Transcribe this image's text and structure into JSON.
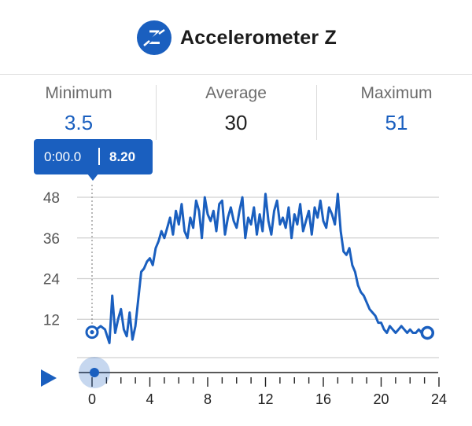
{
  "header": {
    "title": "Accelerometer Z",
    "icon": "accelerometer-z-icon",
    "icon_glyph": "Z"
  },
  "stats": {
    "minimum_label": "Minimum",
    "minimum_value": "3.5",
    "average_label": "Average",
    "average_value": "30",
    "maximum_label": "Maximum",
    "maximum_value": "51"
  },
  "tooltip": {
    "time": "0:00.0",
    "value": "8.20"
  },
  "playback": {
    "icon": "play-icon",
    "scrubber_position": 0
  },
  "colors": {
    "accent": "#1a5fbf",
    "grid": "#d0d0d0",
    "label": "#555555"
  },
  "chart_data": {
    "type": "line",
    "title": "",
    "xlabel": "",
    "ylabel": "",
    "xlim": [
      0,
      24
    ],
    "ylim": [
      0,
      48
    ],
    "y_ticks": [
      12,
      24,
      36,
      48
    ],
    "x_ticks": [
      0,
      4,
      8,
      12,
      16,
      20,
      24
    ],
    "y_tick_labels": [
      "12",
      "24",
      "36",
      "48"
    ],
    "x_tick_labels": [
      "0",
      "4",
      "8",
      "12",
      "16",
      "20",
      "24"
    ],
    "grid": true,
    "series": [
      {
        "x": [
          0,
          0.3,
          0.6,
          0.9,
          1.2,
          1.4,
          1.6,
          1.8,
          2.0,
          2.2,
          2.4,
          2.6,
          2.8,
          3.0,
          3.2,
          3.4,
          3.6,
          3.8,
          4.0,
          4.2,
          4.4,
          4.6,
          4.8,
          5.0,
          5.2,
          5.4,
          5.6,
          5.8,
          6.0,
          6.2,
          6.4,
          6.6,
          6.8,
          7.0,
          7.2,
          7.4,
          7.6,
          7.8,
          8.0,
          8.2,
          8.4,
          8.6,
          8.8,
          9.0,
          9.2,
          9.4,
          9.6,
          9.8,
          10.0,
          10.2,
          10.4,
          10.6,
          10.8,
          11.0,
          11.2,
          11.4,
          11.6,
          11.8,
          12.0,
          12.2,
          12.4,
          12.6,
          12.8,
          13.0,
          13.2,
          13.4,
          13.6,
          13.8,
          14.0,
          14.2,
          14.4,
          14.6,
          14.8,
          15.0,
          15.2,
          15.4,
          15.6,
          15.8,
          16.0,
          16.2,
          16.4,
          16.6,
          16.8,
          17.0,
          17.2,
          17.4,
          17.6,
          17.8,
          18.0,
          18.2,
          18.4,
          18.6,
          18.8,
          19.0,
          19.2,
          19.4,
          19.6,
          19.8,
          20.0,
          20.2,
          20.4,
          20.6,
          20.8,
          21.0,
          21.2,
          21.4,
          21.6,
          21.8,
          22.0,
          22.2,
          22.4,
          22.6,
          22.8,
          23.0,
          23.2
        ],
        "y": [
          8.2,
          9,
          10,
          9,
          5,
          19,
          8,
          12,
          15,
          9,
          7,
          14,
          6,
          10,
          18,
          26,
          27,
          29,
          30,
          28,
          33,
          35,
          38,
          36,
          39,
          42,
          37,
          44,
          40,
          46,
          38,
          36,
          42,
          39,
          47,
          44,
          36,
          48,
          43,
          41,
          44,
          38,
          46,
          47,
          37,
          42,
          45,
          41,
          39,
          44,
          48,
          36,
          42,
          40,
          45,
          37,
          43,
          38,
          49,
          41,
          37,
          44,
          47,
          40,
          42,
          39,
          45,
          36,
          43,
          40,
          46,
          38,
          41,
          44,
          37,
          45,
          42,
          47,
          41,
          39,
          45,
          43,
          40,
          49,
          38,
          32,
          31,
          33,
          28,
          26,
          22,
          20,
          19,
          17,
          15,
          14,
          13,
          11,
          11,
          9,
          8,
          10,
          9,
          8,
          9,
          10,
          9,
          8,
          9,
          8,
          8,
          9,
          8,
          9,
          8
        ]
      }
    ]
  }
}
